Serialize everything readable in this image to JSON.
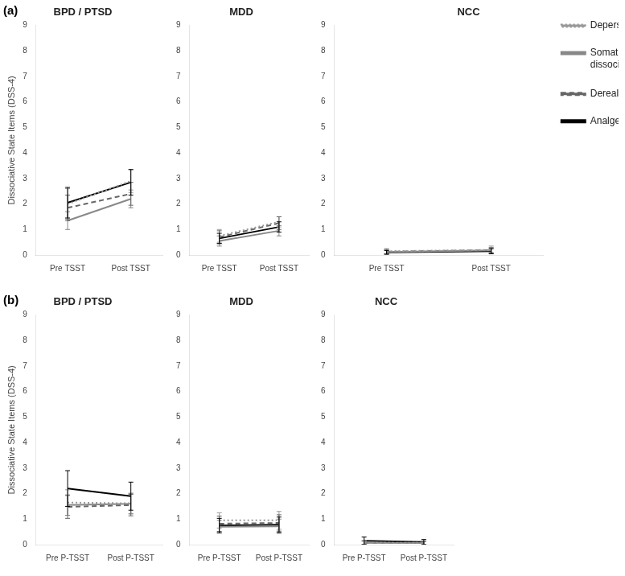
{
  "chart_data": [
    {
      "type": "line",
      "title": "BPD / PTSD",
      "annotations": [
        "(a)"
      ],
      "categories": [
        "Pre TSST",
        "Post TSST"
      ],
      "ylabel": "Dissociative State Items (DSS-4)",
      "ylim": [
        0,
        9
      ],
      "yticks": [
        0,
        1,
        2,
        3,
        4,
        5,
        6,
        7,
        8,
        9
      ],
      "grid": false,
      "legend": false,
      "series": [
        {
          "color": "#999999",
          "line_style": "dotted",
          "values": [
            2.0,
            2.9
          ],
          "yerr": [
            0.6,
            0.45
          ]
        },
        {
          "color": "#888888",
          "line_style": "solid",
          "values": [
            1.35,
            2.2
          ],
          "yerr": [
            0.35,
            0.35
          ]
        },
        {
          "color": "#666666",
          "line_style": "dashed",
          "values": [
            1.85,
            2.4
          ],
          "yerr": [
            0.5,
            0.45
          ]
        },
        {
          "color": "#000000",
          "line_style": "solid",
          "values": [
            2.05,
            2.85
          ],
          "yerr": [
            0.6,
            0.5
          ]
        }
      ]
    },
    {
      "type": "line",
      "title": "MDD",
      "categories": [
        "Pre TSST",
        "Post TSST"
      ],
      "ylim": [
        0,
        9
      ],
      "yticks": [
        0,
        1,
        2,
        3,
        4,
        5,
        6,
        7,
        8,
        9
      ],
      "grid": false,
      "legend": false,
      "series": [
        {
          "color": "#999999",
          "line_style": "dotted",
          "values": [
            0.75,
            1.3
          ],
          "yerr": [
            0.25,
            0.2
          ]
        },
        {
          "color": "#888888",
          "line_style": "solid",
          "values": [
            0.55,
            0.95
          ],
          "yerr": [
            0.2,
            0.2
          ]
        },
        {
          "color": "#666666",
          "line_style": "dashed",
          "values": [
            0.7,
            1.25
          ],
          "yerr": [
            0.25,
            0.25
          ]
        },
        {
          "color": "#000000",
          "line_style": "solid",
          "values": [
            0.65,
            1.1
          ],
          "yerr": [
            0.2,
            0.2
          ]
        }
      ]
    },
    {
      "type": "line",
      "title": "NCC",
      "categories": [
        "Pre TSST",
        "Post TSST"
      ],
      "ylim": [
        0,
        9
      ],
      "yticks": [
        0,
        1,
        2,
        3,
        4,
        5,
        6,
        7,
        8,
        9
      ],
      "grid": false,
      "legend": "right",
      "series": [
        {
          "name": "Depersonalization",
          "color": "#999999",
          "line_style": "dotted",
          "values": [
            0.15,
            0.2
          ],
          "yerr": [
            0.1,
            0.15
          ]
        },
        {
          "name": "Somatoform\ndissociation",
          "color": "#888888",
          "line_style": "solid",
          "values": [
            0.12,
            0.18
          ],
          "yerr": [
            0.08,
            0.1
          ]
        },
        {
          "name": "Derealization",
          "color": "#666666",
          "line_style": "dashed",
          "values": [
            0.13,
            0.19
          ],
          "yerr": [
            0.09,
            0.1
          ]
        },
        {
          "name": "Analgesia",
          "color": "#000000",
          "line_style": "solid",
          "values": [
            0.1,
            0.15
          ],
          "yerr": [
            0.07,
            0.1
          ]
        }
      ]
    },
    {
      "type": "line",
      "title": "BPD / PTSD",
      "annotations": [
        "(b)"
      ],
      "categories": [
        "Pre P-TSST",
        "Post P-TSST"
      ],
      "ylabel": "Dissociative State Items (DSS-4)",
      "ylim": [
        0,
        9
      ],
      "yticks": [
        0,
        1,
        2,
        3,
        4,
        5,
        6,
        7,
        8,
        9
      ],
      "grid": false,
      "legend": false,
      "series": [
        {
          "color": "#999999",
          "line_style": "dotted",
          "values": [
            1.65,
            1.62
          ],
          "yerr": [
            0.5,
            0.4
          ]
        },
        {
          "color": "#888888",
          "line_style": "solid",
          "values": [
            1.55,
            1.6
          ],
          "yerr": [
            0.4,
            0.4
          ]
        },
        {
          "color": "#666666",
          "line_style": "dashed",
          "values": [
            1.48,
            1.55
          ],
          "yerr": [
            0.45,
            0.42
          ]
        },
        {
          "color": "#000000",
          "line_style": "solid",
          "values": [
            2.2,
            1.9
          ],
          "yerr": [
            0.7,
            0.55
          ]
        }
      ]
    },
    {
      "type": "line",
      "title": "MDD",
      "categories": [
        "Pre P-TSST",
        "Post P-TSST"
      ],
      "ylim": [
        0,
        9
      ],
      "yticks": [
        0,
        1,
        2,
        3,
        4,
        5,
        6,
        7,
        8,
        9
      ],
      "grid": false,
      "legend": false,
      "series": [
        {
          "color": "#999999",
          "line_style": "dotted",
          "values": [
            0.95,
            0.95
          ],
          "yerr": [
            0.3,
            0.35
          ]
        },
        {
          "color": "#888888",
          "line_style": "solid",
          "values": [
            0.7,
            0.72
          ],
          "yerr": [
            0.25,
            0.28
          ]
        },
        {
          "color": "#666666",
          "line_style": "dashed",
          "values": [
            0.82,
            0.85
          ],
          "yerr": [
            0.3,
            0.32
          ]
        },
        {
          "color": "#000000",
          "line_style": "solid",
          "values": [
            0.75,
            0.78
          ],
          "yerr": [
            0.28,
            0.3
          ]
        }
      ]
    },
    {
      "type": "line",
      "title": "NCC",
      "categories": [
        "Pre P-TSST",
        "Post P-TSST"
      ],
      "ylim": [
        0,
        9
      ],
      "yticks": [
        0,
        1,
        2,
        3,
        4,
        5,
        6,
        7,
        8,
        9
      ],
      "grid": false,
      "legend": false,
      "series": [
        {
          "color": "#999999",
          "line_style": "dotted",
          "values": [
            0.08,
            0.07
          ],
          "yerr": [
            0.08,
            0.07
          ]
        },
        {
          "color": "#888888",
          "line_style": "solid",
          "values": [
            0.07,
            0.06
          ],
          "yerr": [
            0.07,
            0.06
          ]
        },
        {
          "color": "#666666",
          "line_style": "dashed",
          "values": [
            0.07,
            0.07
          ],
          "yerr": [
            0.07,
            0.07
          ]
        },
        {
          "color": "#000000",
          "line_style": "solid",
          "values": [
            0.15,
            0.1
          ],
          "yerr": [
            0.15,
            0.1
          ]
        }
      ]
    }
  ]
}
